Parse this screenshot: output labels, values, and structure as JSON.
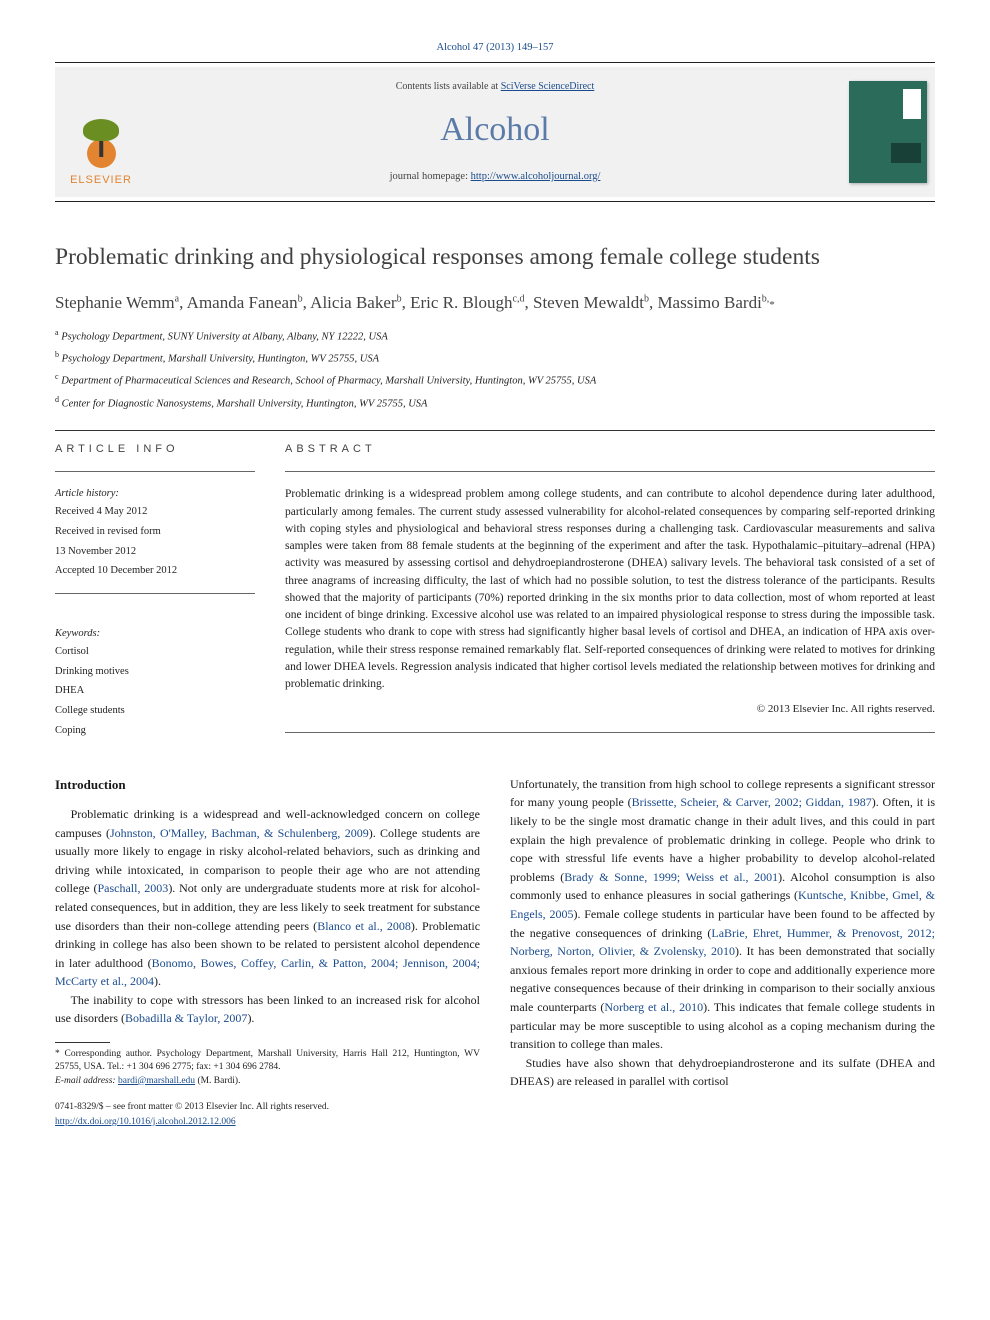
{
  "citation": "Alcohol 47 (2013) 149–157",
  "masthead": {
    "contents_prefix": "Contents lists available at ",
    "contents_link": "SciVerse ScienceDirect",
    "journal_name": "Alcohol",
    "homepage_prefix": "journal homepage: ",
    "homepage_url": "http://www.alcoholjournal.org/",
    "publisher_name": "ELSEVIER"
  },
  "article": {
    "title": "Problematic drinking and physiological responses among female college students",
    "authors_html": "Stephanie Wemm<sup>a</sup>, Amanda Fanean<sup>b</sup>, Alicia Baker<sup>b</sup>, Eric R. Blough<sup>c,d</sup>, Steven Mewaldt<sup>b</sup>, Massimo Bardi<sup>b,</sup><span class='star'>*</span>",
    "affiliations": [
      "a|Psychology Department, SUNY University at Albany, Albany, NY 12222, USA",
      "b|Psychology Department, Marshall University, Huntington, WV 25755, USA",
      "c|Department of Pharmaceutical Sciences and Research, School of Pharmacy, Marshall University, Huntington, WV 25755, USA",
      "d|Center for Diagnostic Nanosystems, Marshall University, Huntington, WV 25755, USA"
    ]
  },
  "info": {
    "label": "ARTICLE INFO",
    "history_heading": "Article history:",
    "history": [
      "Received 4 May 2012",
      "Received in revised form",
      "13 November 2012",
      "Accepted 10 December 2012"
    ],
    "keywords_heading": "Keywords:",
    "keywords": [
      "Cortisol",
      "Drinking motives",
      "DHEA",
      "College students",
      "Coping"
    ]
  },
  "abstract": {
    "label": "ABSTRACT",
    "text": "Problematic drinking is a widespread problem among college students, and can contribute to alcohol dependence during later adulthood, particularly among females. The current study assessed vulnerability for alcohol-related consequences by comparing self-reported drinking with coping styles and physiological and behavioral stress responses during a challenging task. Cardiovascular measurements and saliva samples were taken from 88 female students at the beginning of the experiment and after the task. Hypothalamic–pituitary–adrenal (HPA) activity was measured by assessing cortisol and dehydroepiandrosterone (DHEA) salivary levels. The behavioral task consisted of a set of three anagrams of increasing difficulty, the last of which had no possible solution, to test the distress tolerance of the participants. Results showed that the majority of participants (70%) reported drinking in the six months prior to data collection, most of whom reported at least one incident of binge drinking. Excessive alcohol use was related to an impaired physiological response to stress during the impossible task. College students who drank to cope with stress had significantly higher basal levels of cortisol and DHEA, an indication of HPA axis over-regulation, while their stress response remained remarkably flat. Self-reported consequences of drinking were related to motives for drinking and lower DHEA levels. Regression analysis indicated that higher cortisol levels mediated the relationship between motives for drinking and problematic drinking.",
    "copyright": "© 2013 Elsevier Inc. All rights reserved."
  },
  "body": {
    "intro_heading": "Introduction",
    "col1": {
      "p1_plain": "Problematic drinking is a widespread and well-acknowledged concern on college campuses (",
      "p1_cite1": "Johnston, O'Malley, Bachman, & Schulenberg, 2009",
      "p1_mid1": "). College students are usually more likely to engage in risky alcohol-related behaviors, such as drinking and driving while intoxicated, in comparison to people their age who are not attending college (",
      "p1_cite2": "Paschall, 2003",
      "p1_mid2": "). Not only are undergraduate students more at risk for alcohol-related consequences, but in addition, they are less likely to seek treatment for substance use disorders than their non-college attending peers (",
      "p1_cite3": "Blanco et al., 2008",
      "p1_mid3": "). Problematic drinking in college has also been shown to be related to persistent alcohol dependence in later adulthood (",
      "p1_cite4": "Bonomo, Bowes, Coffey, Carlin, & Patton, 2004; Jennison, 2004; McCarty et al., 2004",
      "p1_end": ").",
      "p2_plain": "The inability to cope with stressors has been linked to an increased risk for alcohol use disorders (",
      "p2_cite1": "Bobadilla & Taylor, 2007",
      "p2_end": ")."
    },
    "col2": {
      "p1_plain": "Unfortunately, the transition from high school to college represents a significant stressor for many young people (",
      "p1_cite1": "Brissette, Scheier, & Carver, 2002; Giddan, 1987",
      "p1_mid1": "). Often, it is likely to be the single most dramatic change in their adult lives, and this could in part explain the high prevalence of problematic drinking in college. People who drink to cope with stressful life events have a higher probability to develop alcohol-related problems (",
      "p1_cite2": "Brady & Sonne, 1999; Weiss et al., 2001",
      "p1_mid2": "). Alcohol consumption is also commonly used to enhance pleasures in social gatherings (",
      "p1_cite3": "Kuntsche, Knibbe, Gmel, & Engels, 2005",
      "p1_mid3": "). Female college students in particular have been found to be affected by the negative consequences of drinking (",
      "p1_cite4": "LaBrie, Ehret, Hummer, & Prenovost, 2012; Norberg, Norton, Olivier, & Zvolensky, 2010",
      "p1_mid4": "). It has been demonstrated that socially anxious females report more drinking in order to cope and additionally experience more negative consequences because of their drinking in comparison to their socially anxious male counterparts (",
      "p1_cite5": "Norberg et al., 2010",
      "p1_end": "). This indicates that female college students in particular may be more susceptible to using alcohol as a coping mechanism during the transition to college than males.",
      "p2_plain": "Studies have also shown that dehydroepiandrosterone and its sulfate (DHEA and DHEAS) are released in parallel with cortisol"
    }
  },
  "footnote": {
    "corresponding": "* Corresponding author. Psychology Department, Marshall University, Harris Hall 212, Huntington, WV 25755, USA. Tel.: +1 304 696 2775; fax: +1 304 696 2784.",
    "email_label": "E-mail address: ",
    "email": "bardi@marshall.edu",
    "email_suffix": " (M. Bardi)."
  },
  "footer": {
    "issn": "0741-8329/$ – see front matter © 2013 Elsevier Inc. All rights reserved.",
    "doi": "http://dx.doi.org/10.1016/j.alcohol.2012.12.006"
  }
}
